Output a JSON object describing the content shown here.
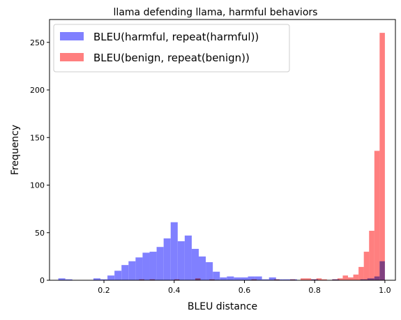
{
  "chart_data": {
    "type": "bar",
    "title": "llama defending llama, harmful behaviors",
    "xlabel": "BLEU distance",
    "ylabel": "Frequency",
    "xlim": [
      0.045,
      1.03
    ],
    "ylim": [
      0,
      274
    ],
    "xticks": [
      0.2,
      0.4,
      0.6,
      0.8,
      1.0
    ],
    "xtick_labels": [
      "0.2",
      "0.4",
      "0.6",
      "0.8",
      "1.0"
    ],
    "yticks": [
      0,
      50,
      100,
      150,
      200,
      250
    ],
    "ytick_labels": [
      "0",
      "50",
      "100",
      "150",
      "200",
      "250"
    ],
    "legend_position": "top-left",
    "overlap_color": "#a02a7e",
    "series": [
      {
        "name": "BLEU(harmful, repeat(harmful))",
        "color": "#8080ff",
        "bins": [
          {
            "x0": 0.07,
            "x1": 0.09,
            "count": 2
          },
          {
            "x0": 0.09,
            "x1": 0.11,
            "count": 1
          },
          {
            "x0": 0.17,
            "x1": 0.19,
            "count": 2
          },
          {
            "x0": 0.19,
            "x1": 0.21,
            "count": 1
          },
          {
            "x0": 0.21,
            "x1": 0.23,
            "count": 5
          },
          {
            "x0": 0.23,
            "x1": 0.25,
            "count": 10
          },
          {
            "x0": 0.25,
            "x1": 0.27,
            "count": 16
          },
          {
            "x0": 0.27,
            "x1": 0.29,
            "count": 20
          },
          {
            "x0": 0.29,
            "x1": 0.31,
            "count": 24
          },
          {
            "x0": 0.31,
            "x1": 0.33,
            "count": 29
          },
          {
            "x0": 0.33,
            "x1": 0.35,
            "count": 30
          },
          {
            "x0": 0.35,
            "x1": 0.37,
            "count": 35
          },
          {
            "x0": 0.37,
            "x1": 0.39,
            "count": 44
          },
          {
            "x0": 0.39,
            "x1": 0.41,
            "count": 61
          },
          {
            "x0": 0.41,
            "x1": 0.43,
            "count": 41
          },
          {
            "x0": 0.43,
            "x1": 0.45,
            "count": 47
          },
          {
            "x0": 0.45,
            "x1": 0.47,
            "count": 33
          },
          {
            "x0": 0.47,
            "x1": 0.49,
            "count": 25
          },
          {
            "x0": 0.49,
            "x1": 0.51,
            "count": 19
          },
          {
            "x0": 0.51,
            "x1": 0.53,
            "count": 9
          },
          {
            "x0": 0.53,
            "x1": 0.55,
            "count": 3
          },
          {
            "x0": 0.55,
            "x1": 0.57,
            "count": 4
          },
          {
            "x0": 0.57,
            "x1": 0.59,
            "count": 3
          },
          {
            "x0": 0.59,
            "x1": 0.61,
            "count": 3
          },
          {
            "x0": 0.61,
            "x1": 0.63,
            "count": 4
          },
          {
            "x0": 0.63,
            "x1": 0.65,
            "count": 4
          },
          {
            "x0": 0.65,
            "x1": 0.67,
            "count": 1
          },
          {
            "x0": 0.67,
            "x1": 0.69,
            "count": 3
          },
          {
            "x0": 0.69,
            "x1": 0.71,
            "count": 1
          },
          {
            "x0": 0.71,
            "x1": 0.73,
            "count": 1
          },
          {
            "x0": 0.73,
            "x1": 0.75,
            "count": 1
          },
          {
            "x0": 0.79,
            "x1": 0.81,
            "count": 1
          },
          {
            "x0": 0.85,
            "x1": 0.87,
            "count": 1
          },
          {
            "x0": 0.93,
            "x1": 0.95,
            "count": 1
          },
          {
            "x0": 0.95,
            "x1": 0.97,
            "count": 2
          },
          {
            "x0": 0.97,
            "x1": 0.985,
            "count": 4
          },
          {
            "x0": 0.985,
            "x1": 1.0,
            "count": 20
          }
        ]
      },
      {
        "name": "BLEU(benign, repeat(benign))",
        "color": "#ff7f7f",
        "bins": [
          {
            "x0": 0.3,
            "x1": 0.315,
            "count": 1
          },
          {
            "x0": 0.33,
            "x1": 0.345,
            "count": 1
          },
          {
            "x0": 0.4,
            "x1": 0.415,
            "count": 1
          },
          {
            "x0": 0.46,
            "x1": 0.475,
            "count": 2
          },
          {
            "x0": 0.5,
            "x1": 0.515,
            "count": 1
          },
          {
            "x0": 0.62,
            "x1": 0.635,
            "count": 1
          },
          {
            "x0": 0.685,
            "x1": 0.7,
            "count": 1
          },
          {
            "x0": 0.73,
            "x1": 0.745,
            "count": 1
          },
          {
            "x0": 0.76,
            "x1": 0.775,
            "count": 2
          },
          {
            "x0": 0.775,
            "x1": 0.79,
            "count": 2
          },
          {
            "x0": 0.79,
            "x1": 0.805,
            "count": 1
          },
          {
            "x0": 0.805,
            "x1": 0.82,
            "count": 2
          },
          {
            "x0": 0.82,
            "x1": 0.835,
            "count": 1
          },
          {
            "x0": 0.85,
            "x1": 0.865,
            "count": 1
          },
          {
            "x0": 0.865,
            "x1": 0.88,
            "count": 2
          },
          {
            "x0": 0.88,
            "x1": 0.895,
            "count": 5
          },
          {
            "x0": 0.895,
            "x1": 0.91,
            "count": 3
          },
          {
            "x0": 0.91,
            "x1": 0.925,
            "count": 6
          },
          {
            "x0": 0.925,
            "x1": 0.94,
            "count": 14
          },
          {
            "x0": 0.94,
            "x1": 0.955,
            "count": 30
          },
          {
            "x0": 0.955,
            "x1": 0.97,
            "count": 52
          },
          {
            "x0": 0.97,
            "x1": 0.985,
            "count": 136
          },
          {
            "x0": 0.985,
            "x1": 1.0,
            "count": 260
          }
        ]
      }
    ]
  }
}
